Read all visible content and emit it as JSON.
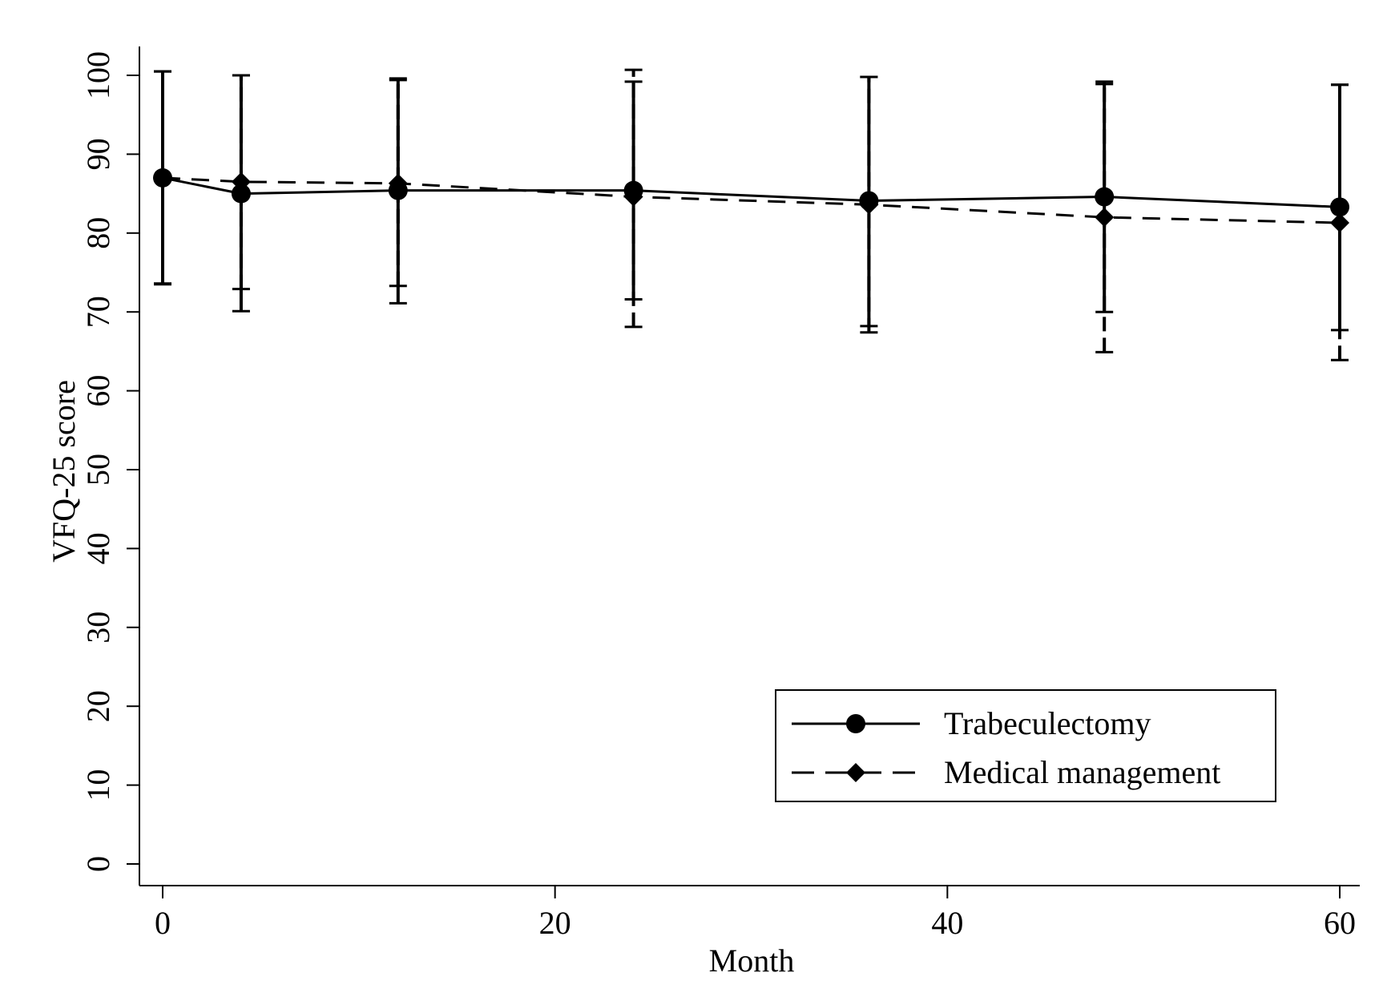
{
  "chart_data": {
    "type": "line",
    "title": "",
    "xlabel": "Month",
    "ylabel": "VFQ-25 score",
    "xlim": [
      0,
      60
    ],
    "ylim": [
      0,
      100
    ],
    "x_ticks": [
      0,
      20,
      40,
      60
    ],
    "y_ticks": [
      0,
      10,
      20,
      30,
      40,
      50,
      60,
      70,
      80,
      90,
      100
    ],
    "grid": false,
    "legend_position": "bottom-right",
    "series": [
      {
        "name": "Trabeculectomy",
        "line_style": "solid",
        "marker": "circle",
        "color": "#000000",
        "x": [
          0,
          4,
          12,
          24,
          36,
          48,
          60
        ],
        "y": [
          87.0,
          85.0,
          85.4,
          85.4,
          84.1,
          84.6,
          83.3
        ],
        "error_low": [
          73.5,
          70.1,
          71.1,
          71.6,
          68.2,
          70.0,
          67.7
        ],
        "error_high": [
          100.5,
          100.0,
          99.6,
          99.2,
          99.8,
          99.2,
          98.8
        ]
      },
      {
        "name": "Medical management",
        "line_style": "dashed",
        "marker": "diamond",
        "color": "#000000",
        "x": [
          0,
          4,
          12,
          24,
          36,
          48,
          60
        ],
        "y": [
          87.0,
          86.5,
          86.3,
          84.6,
          83.6,
          82.0,
          81.3
        ],
        "error_low": [
          73.6,
          72.9,
          73.3,
          68.1,
          67.4,
          64.9,
          63.9
        ],
        "error_high": [
          100.5,
          100.0,
          99.4,
          100.7,
          99.8,
          98.9,
          98.8
        ]
      }
    ]
  }
}
